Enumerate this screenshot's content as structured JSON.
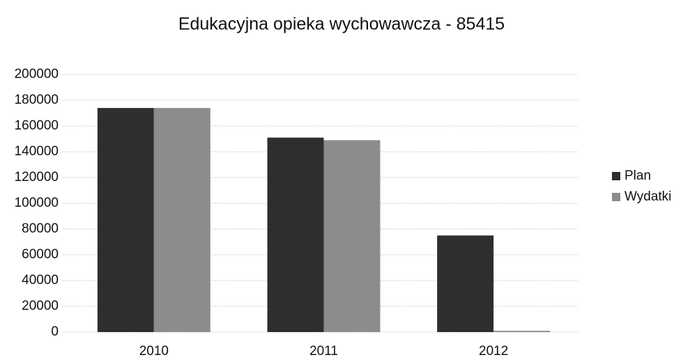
{
  "chart_data": {
    "type": "bar",
    "title": "Edukacyjna opieka wychowawcza - 85415",
    "categories": [
      "2010",
      "2011",
      "2012"
    ],
    "series": [
      {
        "name": "Plan",
        "color": "#2e2e2e",
        "values": [
          174000,
          151000,
          75000
        ]
      },
      {
        "name": "Wydatki",
        "color": "#8c8c8c",
        "values": [
          174000,
          149000,
          1000
        ]
      }
    ],
    "ylim": [
      0,
      200000
    ],
    "yticks": [
      0,
      20000,
      40000,
      60000,
      80000,
      100000,
      120000,
      140000,
      160000,
      180000,
      200000
    ],
    "grid": true,
    "legend": "right"
  }
}
